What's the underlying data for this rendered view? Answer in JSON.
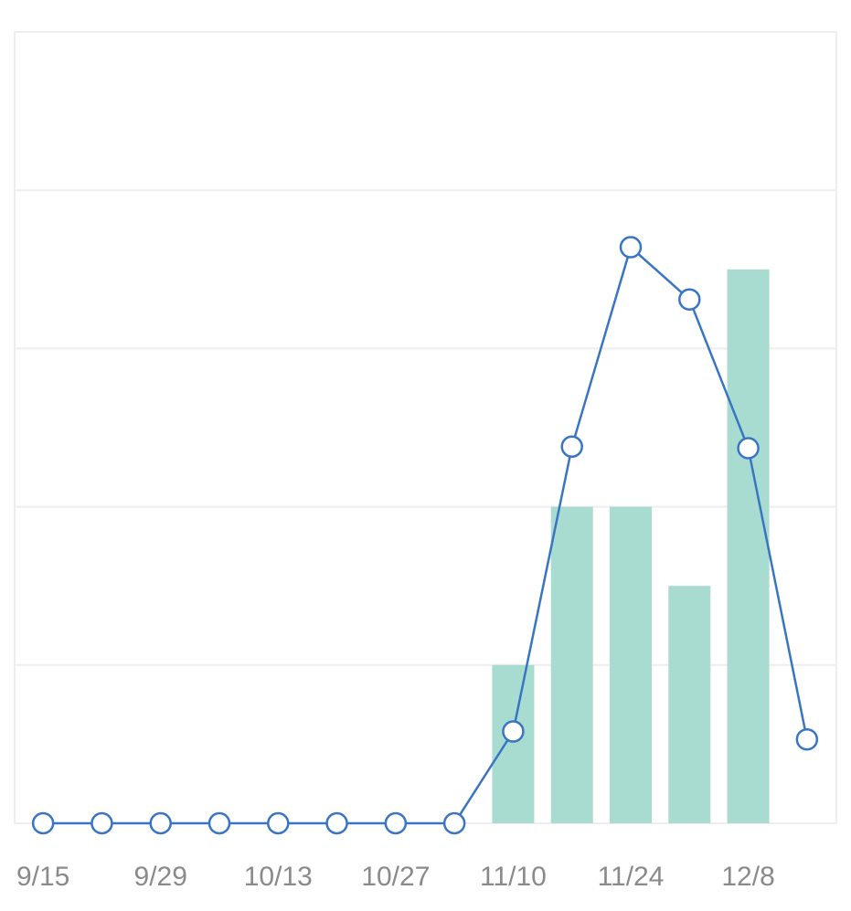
{
  "chart_data": {
    "type": "bar-line",
    "categories": [
      "9/15",
      null,
      "9/29",
      null,
      "10/13",
      null,
      "10/27",
      null,
      "11/10",
      null,
      "11/24",
      null,
      "12/8",
      null
    ],
    "series": [
      {
        "kind": "bar",
        "color": "#a8dcd1",
        "values": [
          0,
          0,
          0,
          0,
          0,
          0,
          0,
          0,
          1,
          2,
          2,
          1.5,
          3.5,
          0
        ]
      },
      {
        "kind": "line",
        "color": "#3a75c4",
        "values": [
          0,
          0,
          0,
          0,
          0,
          0,
          0,
          0,
          0.58,
          2.38,
          3.64,
          3.31,
          2.37,
          0.53
        ]
      }
    ],
    "ylim": [
      0,
      5
    ],
    "yticks": [
      0,
      1,
      2,
      3,
      4,
      5
    ],
    "grid": true
  }
}
